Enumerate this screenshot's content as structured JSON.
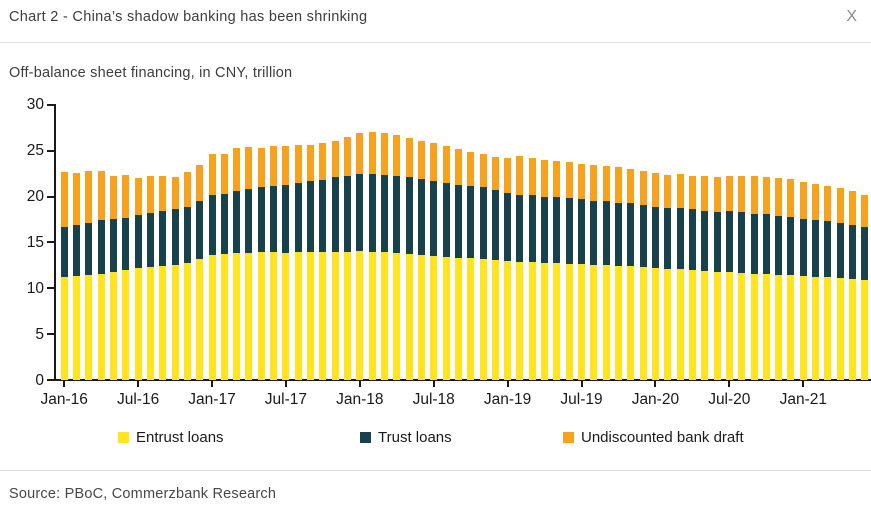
{
  "header": {
    "title": "Chart 2 - China’s shadow banking has been shrinking",
    "close_glyph": "X"
  },
  "subtitle": "Off-balance sheet financing, in CNY, trillion",
  "source": "Source: PBoC, Commerzbank Research",
  "colors": {
    "entrust": "#FFE41E",
    "trust": "#17414B",
    "undiscounted": "#F6A21D",
    "axis": "#1a1a1a",
    "divider": "#dedede"
  },
  "chart_data": {
    "type": "bar",
    "stacked": true,
    "title": "Off-balance sheet financing, in CNY, trillion",
    "unit": "CNY trillion",
    "ylim": [
      0,
      30
    ],
    "yticks": [
      0,
      5,
      10,
      15,
      20,
      25,
      30
    ],
    "xtick_labels": [
      "Jan-16",
      "Jul-16",
      "Jan-17",
      "Jul-17",
      "Jan-18",
      "Jul-18",
      "Jan-19",
      "Jul-19",
      "Jan-20",
      "Jul-20",
      "Jan-21"
    ],
    "legend_position": "bottom",
    "grid": false,
    "categories": [
      "Jan-16",
      "Feb-16",
      "Mar-16",
      "Apr-16",
      "May-16",
      "Jun-16",
      "Jul-16",
      "Aug-16",
      "Sep-16",
      "Oct-16",
      "Nov-16",
      "Dec-16",
      "Jan-17",
      "Feb-17",
      "Mar-17",
      "Apr-17",
      "May-17",
      "Jun-17",
      "Jul-17",
      "Aug-17",
      "Sep-17",
      "Oct-17",
      "Nov-17",
      "Dec-17",
      "Jan-18",
      "Feb-18",
      "Mar-18",
      "Apr-18",
      "May-18",
      "Jun-18",
      "Jul-18",
      "Aug-18",
      "Sep-18",
      "Oct-18",
      "Nov-18",
      "Dec-18",
      "Jan-19",
      "Feb-19",
      "Mar-19",
      "Apr-19",
      "May-19",
      "Jun-19",
      "Jul-19",
      "Aug-19",
      "Sep-19",
      "Oct-19",
      "Nov-19",
      "Dec-19",
      "Jan-20",
      "Feb-20",
      "Mar-20",
      "Apr-20",
      "May-20",
      "Jun-20",
      "Jul-20",
      "Aug-20",
      "Sep-20",
      "Oct-20",
      "Nov-20",
      "Dec-20",
      "Jan-21",
      "Feb-21",
      "Mar-21",
      "Apr-21",
      "May-21",
      "Jun-21"
    ],
    "series": [
      {
        "name": "Entrust loans",
        "color": "#FFE41E",
        "values": [
          11.2,
          11.3,
          11.4,
          11.6,
          11.8,
          12.0,
          12.2,
          12.3,
          12.4,
          12.5,
          12.7,
          13.2,
          13.6,
          13.7,
          13.8,
          13.8,
          13.9,
          13.9,
          13.9,
          13.9,
          14.0,
          13.9,
          14.0,
          14.0,
          14.0,
          14.0,
          13.9,
          13.8,
          13.7,
          13.6,
          13.5,
          13.4,
          13.3,
          13.3,
          13.2,
          13.1,
          13.0,
          12.9,
          12.9,
          12.8,
          12.7,
          12.7,
          12.6,
          12.5,
          12.5,
          12.4,
          12.4,
          12.3,
          12.2,
          12.1,
          12.1,
          12.0,
          11.9,
          11.8,
          11.8,
          11.7,
          11.6,
          11.6,
          11.5,
          11.4,
          11.3,
          11.2,
          11.2,
          11.1,
          11.0,
          10.9
        ]
      },
      {
        "name": "Trust loans",
        "color": "#17414B",
        "values": [
          5.5,
          5.6,
          5.7,
          5.8,
          5.7,
          5.7,
          5.8,
          5.9,
          6.0,
          6.1,
          6.2,
          6.3,
          6.6,
          6.6,
          6.8,
          7.0,
          7.1,
          7.3,
          7.4,
          7.6,
          7.7,
          7.9,
          8.1,
          8.3,
          8.5,
          8.5,
          8.5,
          8.4,
          8.4,
          8.3,
          8.2,
          8.1,
          8.0,
          7.9,
          7.9,
          7.6,
          7.4,
          7.3,
          7.3,
          7.2,
          7.2,
          7.1,
          7.1,
          7.0,
          7.0,
          6.9,
          6.9,
          6.8,
          6.7,
          6.7,
          6.6,
          6.6,
          6.5,
          6.5,
          6.6,
          6.6,
          6.5,
          6.5,
          6.4,
          6.4,
          6.3,
          6.2,
          6.1,
          6.0,
          5.9,
          5.8
        ]
      },
      {
        "name": "Undiscounted bank draft",
        "color": "#F6A21D",
        "values": [
          6.0,
          5.7,
          5.7,
          5.4,
          4.7,
          4.7,
          4.0,
          4.0,
          3.8,
          3.5,
          3.8,
          3.9,
          4.4,
          4.3,
          4.7,
          4.6,
          4.3,
          4.3,
          4.2,
          4.1,
          3.9,
          4.0,
          4.0,
          4.2,
          4.4,
          4.5,
          4.5,
          4.5,
          4.3,
          4.2,
          4.1,
          4.0,
          3.9,
          3.7,
          3.6,
          3.6,
          3.8,
          4.2,
          4.0,
          4.0,
          4.0,
          4.0,
          3.9,
          4.0,
          3.8,
          3.9,
          3.7,
          3.7,
          3.7,
          3.6,
          3.8,
          3.7,
          3.8,
          3.8,
          3.8,
          4.0,
          4.1,
          4.0,
          4.1,
          4.1,
          4.0,
          4.0,
          3.9,
          3.8,
          3.7,
          3.5
        ]
      }
    ]
  }
}
